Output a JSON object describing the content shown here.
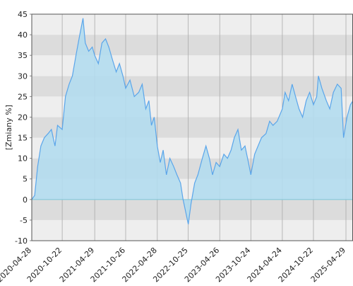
{
  "chart_data": {
    "type": "area",
    "y_label": "[Zmiany %]",
    "color": "#5aa5ea",
    "fill_color": "#b3dcee",
    "band_colors": [
      "#eeeeee",
      "#dcdcdc"
    ],
    "grid": true,
    "xlim": [
      "2020-04-28",
      "2025-06-09"
    ],
    "xticks": [
      "2020-04-28",
      "2020-10-22",
      "2021-04-29",
      "2021-10-26",
      "2022-04-28",
      "2022-10-25",
      "2023-04-26",
      "2023-10-24",
      "2024-04-24",
      "2024-10-22",
      "2025-04-29"
    ],
    "ylim": [
      -10,
      45
    ],
    "yticks": [
      -10,
      -5,
      0,
      5,
      10,
      15,
      20,
      25,
      30,
      35,
      40,
      45
    ],
    "x": [
      "2020-04-28",
      "2020-05-15",
      "2020-06-01",
      "2020-06-20",
      "2020-07-10",
      "2020-08-01",
      "2020-08-20",
      "2020-09-10",
      "2020-09-25",
      "2020-10-22",
      "2020-11-10",
      "2020-12-01",
      "2020-12-20",
      "2021-01-10",
      "2021-02-01",
      "2021-02-20",
      "2021-03-05",
      "2021-03-25",
      "2021-04-15",
      "2021-04-29",
      "2021-05-20",
      "2021-06-10",
      "2021-07-01",
      "2021-07-20",
      "2021-08-10",
      "2021-09-01",
      "2021-09-20",
      "2021-10-10",
      "2021-10-26",
      "2021-11-20",
      "2021-12-15",
      "2022-01-10",
      "2022-01-30",
      "2022-02-20",
      "2022-03-10",
      "2022-03-25",
      "2022-04-10",
      "2022-04-28",
      "2022-05-15",
      "2022-06-01",
      "2022-06-20",
      "2022-07-10",
      "2022-08-01",
      "2022-08-20",
      "2022-09-10",
      "2022-09-25",
      "2022-10-10",
      "2022-10-25",
      "2022-11-10",
      "2022-12-01",
      "2022-12-20",
      "2023-01-15",
      "2023-02-05",
      "2023-02-25",
      "2023-03-15",
      "2023-04-05",
      "2023-04-26",
      "2023-05-20",
      "2023-06-10",
      "2023-07-01",
      "2023-07-20",
      "2023-08-10",
      "2023-08-30",
      "2023-09-20",
      "2023-10-10",
      "2023-10-24",
      "2023-11-15",
      "2023-12-05",
      "2023-12-25",
      "2024-01-20",
      "2024-02-10",
      "2024-03-01",
      "2024-03-25",
      "2024-04-24",
      "2024-05-10",
      "2024-05-30",
      "2024-06-20",
      "2024-07-10",
      "2024-07-30",
      "2024-08-20",
      "2024-09-10",
      "2024-09-30",
      "2024-10-22",
      "2024-11-10",
      "2024-11-20",
      "2024-12-10",
      "2025-01-05",
      "2025-01-25",
      "2025-02-15",
      "2025-03-10",
      "2025-04-01",
      "2025-04-15",
      "2025-05-05",
      "2025-05-25",
      "2025-06-09"
    ],
    "values": [
      0,
      1,
      8,
      13,
      15,
      16,
      17,
      13,
      18,
      17,
      25,
      28,
      30,
      35,
      40,
      44,
      38,
      36,
      37,
      35,
      33,
      38,
      39,
      37,
      34,
      31,
      33,
      30,
      27,
      29,
      25,
      26,
      28,
      22,
      24,
      18,
      20,
      13,
      9,
      12,
      6,
      10,
      8,
      6,
      4,
      0,
      -3,
      -6,
      -1,
      4,
      6,
      10,
      13,
      10,
      6,
      9,
      8,
      11,
      10,
      12,
      15,
      17,
      12,
      13,
      9,
      6,
      11,
      13,
      15,
      16,
      19,
      18,
      19,
      22,
      26,
      24,
      28,
      25,
      22,
      20,
      24,
      26,
      23,
      25,
      30,
      27,
      24,
      22,
      26,
      28,
      27,
      15,
      20,
      23,
      24
    ]
  }
}
